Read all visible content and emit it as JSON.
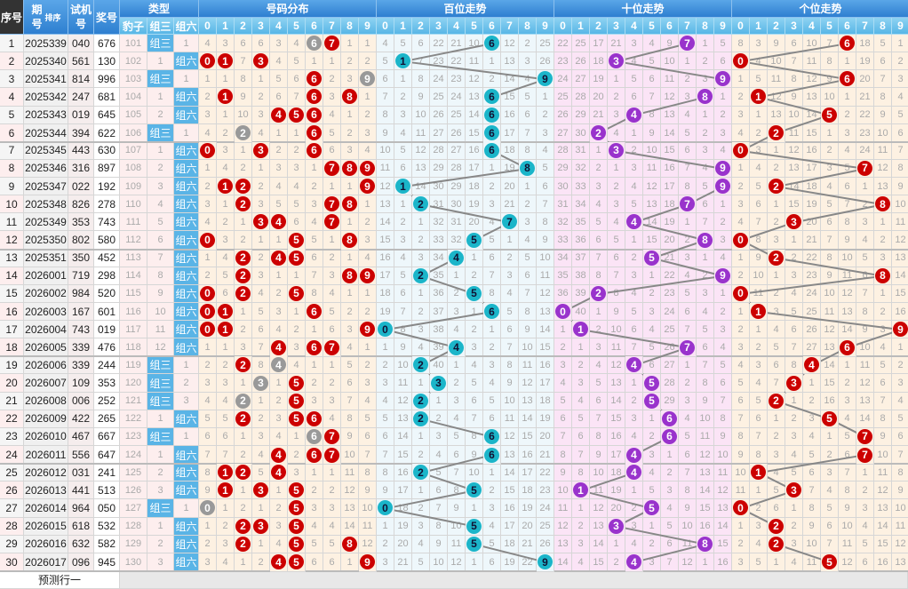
{
  "chart_data": {
    "type": "table",
    "headers": {
      "seq": "序号",
      "period": "期号",
      "sort": "排序",
      "test": "试机号",
      "prize": "奖号",
      "type": "类型",
      "type_cols": [
        "豹子",
        "组三",
        "组六"
      ],
      "dist": "号码分布",
      "hundreds": "百位走势",
      "tens": "十位走势",
      "units": "个位走势",
      "digits": [
        "0",
        "1",
        "2",
        "3",
        "4",
        "5",
        "6",
        "7",
        "8",
        "9"
      ]
    },
    "labels": {
      "zu3": "组三",
      "zu6": "组六",
      "predict": "预测行一"
    },
    "rows": [
      [
        "1",
        "2025339",
        "040",
        "676"
      ],
      [
        "2",
        "2025340",
        "561",
        "130"
      ],
      [
        "3",
        "2025341",
        "814",
        "996"
      ],
      [
        "4",
        "2025342",
        "247",
        "681"
      ],
      [
        "5",
        "2025343",
        "019",
        "645"
      ],
      [
        "6",
        "2025344",
        "394",
        "622"
      ],
      [
        "7",
        "2025345",
        "443",
        "630"
      ],
      [
        "8",
        "2025346",
        "316",
        "897"
      ],
      [
        "9",
        "2025347",
        "022",
        "192"
      ],
      [
        "10",
        "2025348",
        "826",
        "278"
      ],
      [
        "11",
        "2025349",
        "353",
        "743"
      ],
      [
        "12",
        "2025350",
        "802",
        "580"
      ],
      [
        "13",
        "2025351",
        "350",
        "452"
      ],
      [
        "14",
        "2026001",
        "719",
        "298"
      ],
      [
        "15",
        "2026002",
        "984",
        "520"
      ],
      [
        "16",
        "2026003",
        "167",
        "601"
      ],
      [
        "17",
        "2026004",
        "743",
        "019"
      ],
      [
        "18",
        "2026005",
        "339",
        "476"
      ],
      [
        "19",
        "2026006",
        "339",
        "244"
      ],
      [
        "20",
        "2026007",
        "109",
        "353"
      ],
      [
        "21",
        "2026008",
        "006",
        "252"
      ],
      [
        "22",
        "2026009",
        "422",
        "265"
      ],
      [
        "23",
        "2026010",
        "467",
        "667"
      ],
      [
        "24",
        "2026011",
        "556",
        "647"
      ],
      [
        "25",
        "2026012",
        "031",
        "241"
      ],
      [
        "26",
        "2026013",
        "441",
        "513"
      ],
      [
        "27",
        "2026014",
        "964",
        "050"
      ],
      [
        "28",
        "2026015",
        "618",
        "532"
      ],
      [
        "29",
        "2026016",
        "632",
        "582"
      ],
      [
        "30",
        "2026017",
        "096",
        "945"
      ]
    ],
    "first_row_omissions": {
      "type": [
        101,
        null,
        1
      ],
      "dist": [
        4,
        3,
        6,
        6,
        3,
        4,
        null,
        null,
        1,
        1
      ],
      "hundreds": [
        4,
        5,
        6,
        22,
        21,
        10,
        null,
        12,
        2,
        25
      ],
      "tens": [
        22,
        25,
        17,
        21,
        3,
        4,
        9,
        null,
        1,
        5
      ],
      "units": [
        8,
        3,
        9,
        6,
        10,
        7,
        null,
        18,
        5,
        1
      ]
    },
    "colors": {
      "dist_hit": "#cc0000",
      "repeat_hit": "#999999",
      "hundreds_hit": "#1bb5c9",
      "tens_hit": "#9933cc",
      "units_hit": "#cc0000",
      "dist_bg": "#fdf1e2",
      "hundreds_bg": "#eef7fb",
      "tens_bg": "#fbe4f6",
      "units_bg": "#fdf1e2",
      "line": "#888888"
    }
  }
}
